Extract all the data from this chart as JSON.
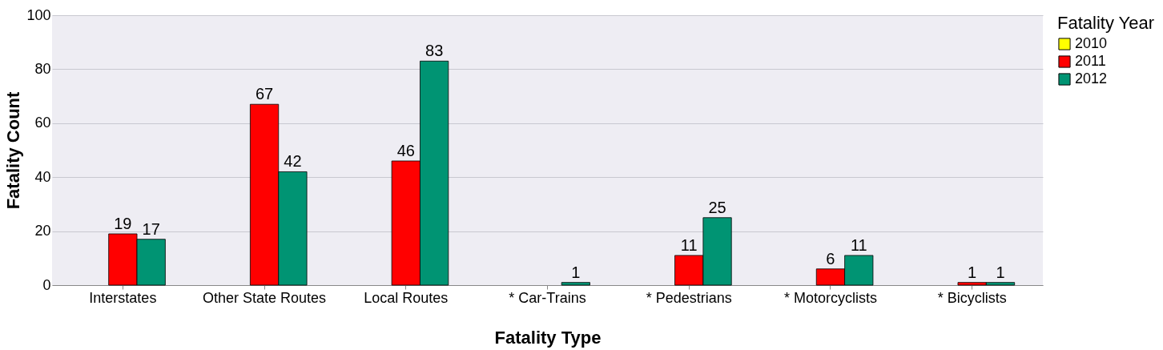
{
  "chart_data": {
    "type": "bar",
    "xlabel": "Fatality Type",
    "ylabel": "Fatality Count",
    "legend_title": "Fatality Year",
    "categories": [
      "Interstates",
      "Other State Routes",
      "Local Routes",
      "* Car-Trains",
      "* Pedestrians",
      "* Motorcyclists",
      "* Bicyclists"
    ],
    "series": [
      {
        "name": "2010",
        "color": "#ffff00",
        "values": [
          null,
          null,
          null,
          null,
          null,
          null,
          null
        ]
      },
      {
        "name": "2011",
        "color": "#ff0000",
        "values": [
          19,
          67,
          46,
          null,
          11,
          6,
          1
        ]
      },
      {
        "name": "2012",
        "color": "#009473",
        "values": [
          17,
          42,
          83,
          1,
          25,
          11,
          1
        ]
      }
    ],
    "ylim": [
      0,
      100
    ],
    "yticks": [
      0,
      20,
      40,
      60,
      80,
      100
    ],
    "grid": "y",
    "legend": "right",
    "data_labels": true
  }
}
